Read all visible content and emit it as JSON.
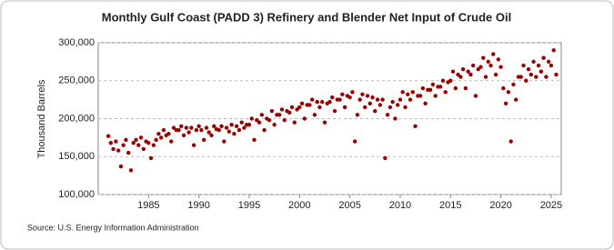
{
  "chart_data": {
    "type": "scatter",
    "title": "Monthly Gulf Coast (PADD 3) Refinery and Blender Net Input of Crude Oil",
    "y_label": "Thousand Barrels",
    "source": "Source: U.S. Energy Information Administration",
    "color": "#990000",
    "grid": true,
    "xlim": [
      1980,
      2026
    ],
    "xticks": [
      1985,
      1990,
      1995,
      2000,
      2005,
      2010,
      2015,
      2020,
      2025
    ],
    "ylim": [
      100000,
      300000
    ],
    "yticks": [
      {
        "value": 100000,
        "label": "100,000"
      },
      {
        "value": 150000,
        "label": "150,000"
      },
      {
        "value": 200000,
        "label": "200,000"
      },
      {
        "value": 250000,
        "label": "250,000"
      },
      {
        "value": 300000,
        "label": "300,000"
      }
    ],
    "x": [
      1981,
      1981.25,
      1981.5,
      1981.75,
      1982,
      1982.25,
      1982.5,
      1982.75,
      1983,
      1983.25,
      1983.5,
      1983.75,
      1984,
      1984.25,
      1984.5,
      1984.75,
      1985,
      1985.25,
      1985.5,
      1985.75,
      1986,
      1986.25,
      1986.5,
      1986.75,
      1987,
      1987.25,
      1987.5,
      1987.75,
      1988,
      1988.25,
      1988.5,
      1988.75,
      1989,
      1989.25,
      1989.5,
      1989.75,
      1990,
      1990.25,
      1990.5,
      1990.75,
      1991,
      1991.25,
      1991.5,
      1991.75,
      1992,
      1992.25,
      1992.5,
      1992.75,
      1993,
      1993.25,
      1993.5,
      1993.75,
      1994,
      1994.25,
      1994.5,
      1994.75,
      1995,
      1995.25,
      1995.5,
      1995.75,
      1996,
      1996.25,
      1996.5,
      1996.75,
      1997,
      1997.25,
      1997.5,
      1997.75,
      1998,
      1998.25,
      1998.5,
      1998.75,
      1999,
      1999.25,
      1999.5,
      1999.75,
      2000,
      2000.25,
      2000.5,
      2000.75,
      2001,
      2001.25,
      2001.5,
      2001.75,
      2002,
      2002.25,
      2002.5,
      2002.75,
      2003,
      2003.25,
      2003.5,
      2003.75,
      2004,
      2004.25,
      2004.5,
      2004.75,
      2005,
      2005.25,
      2005.5,
      2005.75,
      2006,
      2006.25,
      2006.5,
      2006.75,
      2007,
      2007.25,
      2007.5,
      2007.75,
      2008,
      2008.25,
      2008.5,
      2008.75,
      2009,
      2009.25,
      2009.5,
      2009.75,
      2010,
      2010.25,
      2010.5,
      2010.75,
      2011,
      2011.25,
      2011.5,
      2011.75,
      2012,
      2012.25,
      2012.5,
      2012.75,
      2013,
      2013.25,
      2013.5,
      2013.75,
      2014,
      2014.25,
      2014.5,
      2014.75,
      2015,
      2015.25,
      2015.5,
      2015.75,
      2016,
      2016.25,
      2016.5,
      2016.75,
      2017,
      2017.25,
      2017.5,
      2017.75,
      2018,
      2018.25,
      2018.5,
      2018.75,
      2019,
      2019.25,
      2019.5,
      2019.75,
      2020,
      2020.25,
      2020.5,
      2020.75,
      2021,
      2021.25,
      2021.5,
      2021.75,
      2022,
      2022.25,
      2022.5,
      2022.75,
      2023,
      2023.25,
      2023.5,
      2023.75,
      2024,
      2024.25,
      2024.5,
      2024.75,
      2025,
      2025.25,
      2025.5
    ],
    "values": [
      177000,
      168000,
      160000,
      170000,
      158000,
      137000,
      165000,
      172000,
      155000,
      132000,
      168000,
      172000,
      165000,
      175000,
      160000,
      170000,
      168000,
      148000,
      165000,
      172000,
      180000,
      175000,
      185000,
      178000,
      180000,
      170000,
      188000,
      185000,
      185000,
      190000,
      178000,
      188000,
      182000,
      188000,
      165000,
      185000,
      190000,
      185000,
      172000,
      188000,
      182000,
      178000,
      190000,
      186000,
      185000,
      190000,
      170000,
      188000,
      183000,
      192000,
      180000,
      190000,
      185000,
      195000,
      188000,
      192000,
      192000,
      200000,
      172000,
      198000,
      195000,
      205000,
      185000,
      200000,
      198000,
      210000,
      192000,
      205000,
      205000,
      212000,
      198000,
      210000,
      208000,
      215000,
      195000,
      212000,
      215000,
      220000,
      200000,
      218000,
      218000,
      225000,
      205000,
      222000,
      215000,
      222000,
      195000,
      220000,
      222000,
      228000,
      210000,
      225000,
      225000,
      232000,
      215000,
      230000,
      228000,
      235000,
      170000,
      205000,
      225000,
      232000,
      215000,
      230000,
      220000,
      228000,
      210000,
      225000,
      218000,
      225000,
      148000,
      205000,
      215000,
      222000,
      200000,
      218000,
      225000,
      235000,
      215000,
      232000,
      225000,
      235000,
      190000,
      230000,
      230000,
      240000,
      220000,
      238000,
      238000,
      245000,
      230000,
      242000,
      242000,
      250000,
      235000,
      248000,
      250000,
      262000,
      240000,
      258000,
      255000,
      265000,
      240000,
      262000,
      258000,
      270000,
      230000,
      265000,
      268000,
      280000,
      255000,
      275000,
      270000,
      285000,
      258000,
      278000,
      268000,
      240000,
      220000,
      235000,
      170000,
      245000,
      225000,
      255000,
      255000,
      270000,
      250000,
      265000,
      258000,
      275000,
      255000,
      270000,
      262000,
      280000,
      255000,
      275000,
      270000,
      290000,
      258000
    ]
  }
}
